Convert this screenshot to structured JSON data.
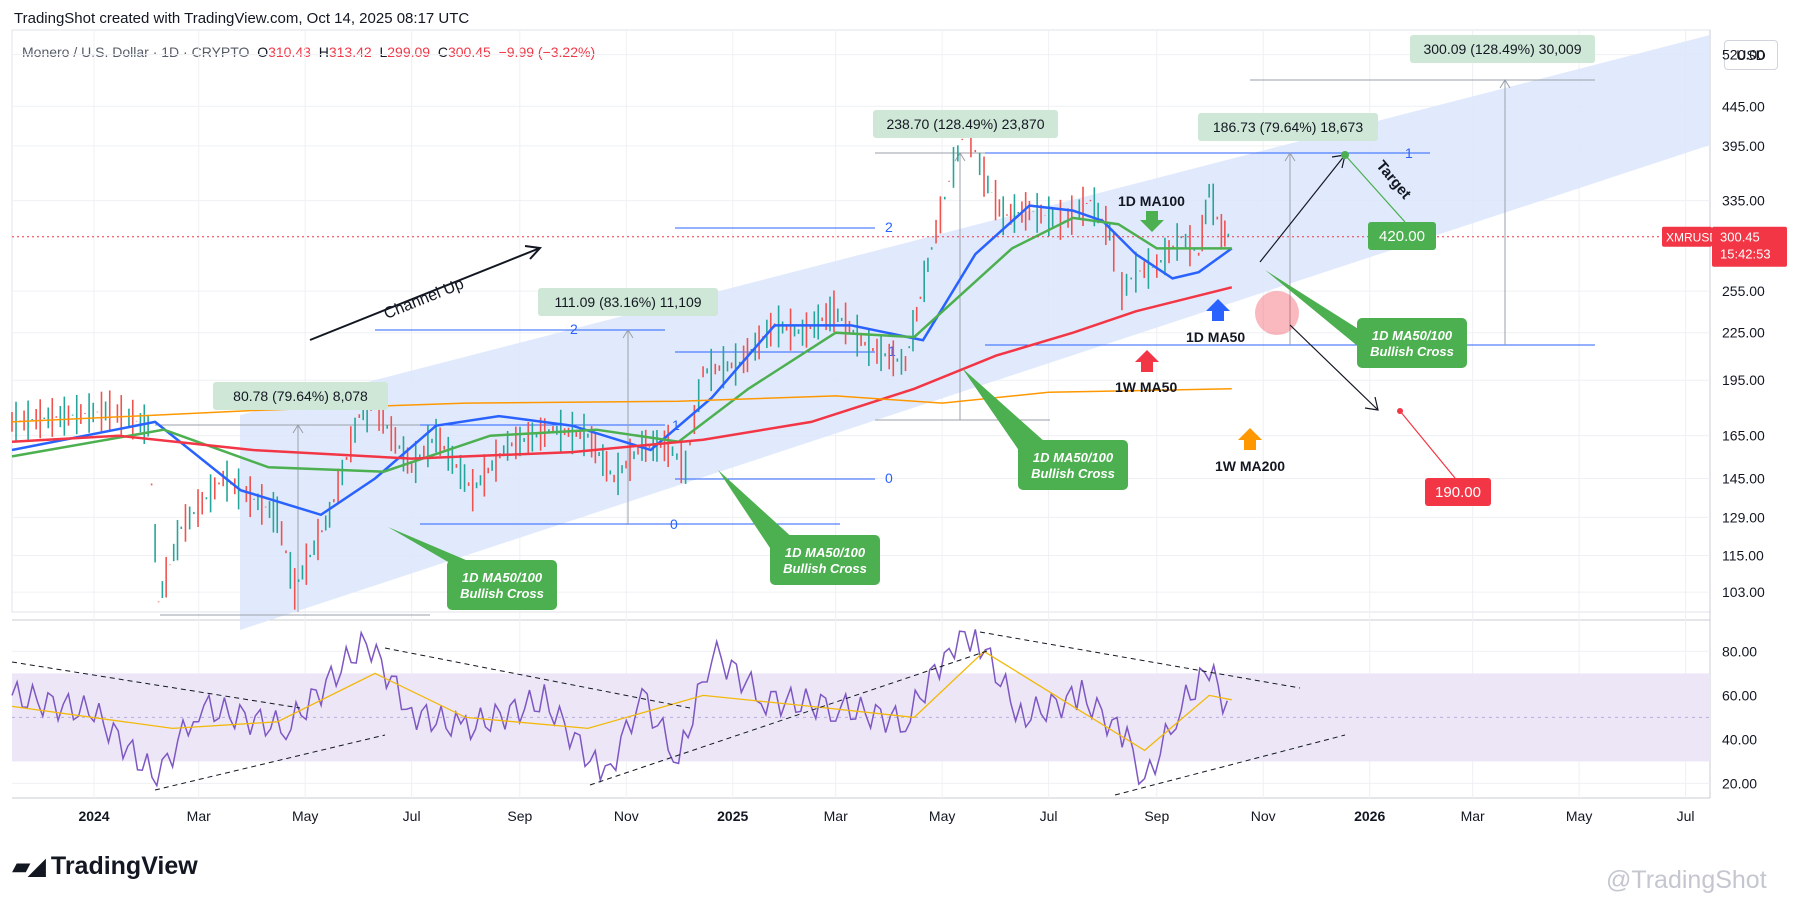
{
  "header": {
    "created_line": "TradingShot created with TradingView.com, Oct 14, 2025 08:17 UTC",
    "symbol": "Monero / U.S. Dollar · 1D · CRYPTO",
    "open_label": "O",
    "open": "310.43",
    "high_label": "H",
    "high": "313.42",
    "low_label": "L",
    "low": "299.09",
    "close_label": "C",
    "close": "300.45",
    "change": "−9.99 (−3.22%)"
  },
  "currency": "USD",
  "footer": {
    "logo_text": "TradingView",
    "watermark": "@TradingShot"
  },
  "colors": {
    "ma50_1d": "#2962ff",
    "ma100_1d": "#4caf50",
    "ma50_1w": "#f23645",
    "ma200_1w": "#ff9800",
    "channel": "#dce6fb",
    "rsi": "#7e57c2",
    "rsi_ma": "#f2b90a",
    "green_callout": "#4caf50",
    "red_callout": "#f23645"
  },
  "chart_data": [
    {
      "type": "line",
      "title": "",
      "scale": "log",
      "ylim": [
        97,
        560
      ],
      "x_range": [
        "2023-11-15",
        "2026-07-15"
      ],
      "y_ticks": [
        "520.00",
        "445.00",
        "395.00",
        "335.00",
        "255.00",
        "225.00",
        "195.00",
        "165.00",
        "145.00",
        "129.00",
        "115.00",
        "103.00"
      ],
      "x_ticks": [
        "2024",
        "Mar",
        "May",
        "Jul",
        "Sep",
        "Nov",
        "2025",
        "Mar",
        "May",
        "Jul",
        "Sep",
        "Nov",
        "2026",
        "Mar",
        "May",
        "Jul"
      ],
      "last_price": {
        "label": "XMRUSD",
        "value": "300.45",
        "countdown": "15:42:53"
      },
      "series": [
        {
          "name": "Monero / U.S. Dollar",
          "x": [
            "2023-11-15",
            "2023-12-15",
            "2024-01-10",
            "2024-02-01",
            "2024-02-07",
            "2024-02-20",
            "2024-03-15",
            "2024-04-15",
            "2024-04-25",
            "2024-05-15",
            "2024-06-01",
            "2024-06-10",
            "2024-07-01",
            "2024-07-15",
            "2024-08-05",
            "2024-08-25",
            "2024-09-20",
            "2024-10-10",
            "2024-10-25",
            "2024-11-10",
            "2024-11-25",
            "2024-12-05",
            "2024-12-15",
            "2025-01-05",
            "2025-01-25",
            "2025-02-10",
            "2025-02-28",
            "2025-03-20",
            "2025-04-10",
            "2025-04-25",
            "2025-05-05",
            "2025-05-15",
            "2025-05-25",
            "2025-06-05",
            "2025-06-20",
            "2025-07-10",
            "2025-07-25",
            "2025-08-05",
            "2025-08-12",
            "2025-08-20",
            "2025-09-01",
            "2025-09-15",
            "2025-09-25",
            "2025-10-01",
            "2025-10-08",
            "2025-10-14"
          ],
          "values": [
            172,
            175,
            178,
            170,
            100,
            125,
            145,
            130,
            104,
            130,
            175,
            180,
            150,
            165,
            140,
            160,
            168,
            165,
            145,
            160,
            160,
            150,
            200,
            205,
            230,
            225,
            240,
            215,
            205,
            290,
            355,
            420,
            360,
            320,
            325,
            315,
            335,
            305,
            255,
            270,
            275,
            300,
            285,
            345,
            305,
            300
          ]
        },
        {
          "name": "1D MA50",
          "x": [
            "2023-11-15",
            "2024-02-05",
            "2024-03-25",
            "2024-05-10",
            "2024-06-10",
            "2024-07-15",
            "2024-08-20",
            "2024-10-01",
            "2024-11-15",
            "2024-12-20",
            "2025-01-25",
            "2025-03-10",
            "2025-04-20",
            "2025-05-20",
            "2025-06-20",
            "2025-07-15",
            "2025-08-01",
            "2025-08-20",
            "2025-09-10",
            "2025-09-25",
            "2025-10-14"
          ],
          "values": [
            158,
            172,
            140,
            130,
            145,
            170,
            175,
            170,
            158,
            185,
            230,
            230,
            220,
            285,
            330,
            325,
            315,
            285,
            265,
            270,
            290
          ]
        },
        {
          "name": "1D MA100",
          "x": [
            "2023-11-15",
            "2024-02-10",
            "2024-04-10",
            "2024-06-15",
            "2024-08-15",
            "2024-10-15",
            "2024-12-01",
            "2025-01-10",
            "2025-03-01",
            "2025-04-15",
            "2025-06-10",
            "2025-07-15",
            "2025-08-10",
            "2025-09-01",
            "2025-10-14"
          ],
          "values": [
            155,
            168,
            150,
            148,
            165,
            168,
            162,
            190,
            225,
            222,
            290,
            318,
            312,
            290,
            290
          ]
        },
        {
          "name": "1W MA50",
          "x": [
            "2023-11-15",
            "2024-01-15",
            "2024-04-01",
            "2024-07-01",
            "2024-10-01",
            "2024-12-15",
            "2025-02-15",
            "2025-04-15",
            "2025-06-01",
            "2025-07-15",
            "2025-08-20",
            "2025-10-14"
          ],
          "values": [
            162,
            165,
            158,
            154,
            157,
            163,
            172,
            190,
            210,
            225,
            240,
            258
          ]
        },
        {
          "name": "1W MA200",
          "x": [
            "2023-11-15",
            "2024-04-01",
            "2024-08-01",
            "2024-12-01",
            "2025-03-01",
            "2025-05-01",
            "2025-07-01",
            "2025-10-14"
          ],
          "values": [
            172,
            178,
            182,
            183,
            186,
            182,
            188,
            190
          ]
        }
      ],
      "annotations": [
        {
          "text": "Channel Up"
        },
        {
          "text": "80.78 (79.64%) 8,078"
        },
        {
          "text": "111.09 (83.16%) 11,109"
        },
        {
          "text": "238.70 (128.49%) 23,870"
        },
        {
          "text": "186.73 (79.64%) 18,673"
        },
        {
          "text": "300.09 (128.49%) 30,009"
        },
        {
          "text": "Target"
        },
        {
          "text": "420.00"
        },
        {
          "text": "190.00"
        },
        {
          "text": "1D MA100"
        },
        {
          "text": "1D MA50"
        },
        {
          "text": "1W MA50"
        },
        {
          "text": "1W MA200"
        },
        {
          "text": "1D MA50/100",
          "text2": "Bullish Cross"
        }
      ],
      "fib_labels": [
        "2",
        "1",
        "0"
      ]
    },
    {
      "type": "line",
      "title": "",
      "ylim": [
        17,
        92
      ],
      "y_ticks": [
        "80.00",
        "60.00",
        "40.00",
        "20.00"
      ],
      "band": [
        30,
        70
      ],
      "mid_line": 50,
      "series": [
        {
          "name": "RSI",
          "x": [
            "2023-11-15",
            "2024-01-01",
            "2024-02-06",
            "2024-03-01",
            "2024-04-20",
            "2024-06-05",
            "2024-07-01",
            "2024-08-01",
            "2024-09-15",
            "2024-10-20",
            "2024-11-10",
            "2024-12-01",
            "2024-12-20",
            "2025-01-20",
            "2025-03-01",
            "2025-04-10",
            "2025-05-05",
            "2025-05-20",
            "2025-06-15",
            "2025-07-20",
            "2025-08-15",
            "2025-08-25",
            "2025-09-15",
            "2025-10-01",
            "2025-10-14"
          ],
          "values": [
            60,
            52,
            22,
            55,
            45,
            85,
            52,
            45,
            58,
            22,
            60,
            30,
            80,
            58,
            55,
            48,
            82,
            88,
            50,
            60,
            40,
            20,
            55,
            72,
            50
          ]
        },
        {
          "name": "RSI MA",
          "x": [
            "2023-11-15",
            "2024-02-15",
            "2024-04-15",
            "2024-06-10",
            "2024-08-01",
            "2024-10-10",
            "2024-12-15",
            "2025-02-15",
            "2025-04-15",
            "2025-05-25",
            "2025-07-15",
            "2025-08-25",
            "2025-10-01",
            "2025-10-14"
          ],
          "values": [
            55,
            45,
            48,
            70,
            50,
            45,
            60,
            55,
            50,
            80,
            55,
            35,
            60,
            58
          ]
        }
      ],
      "trendlines": "dashed"
    }
  ]
}
